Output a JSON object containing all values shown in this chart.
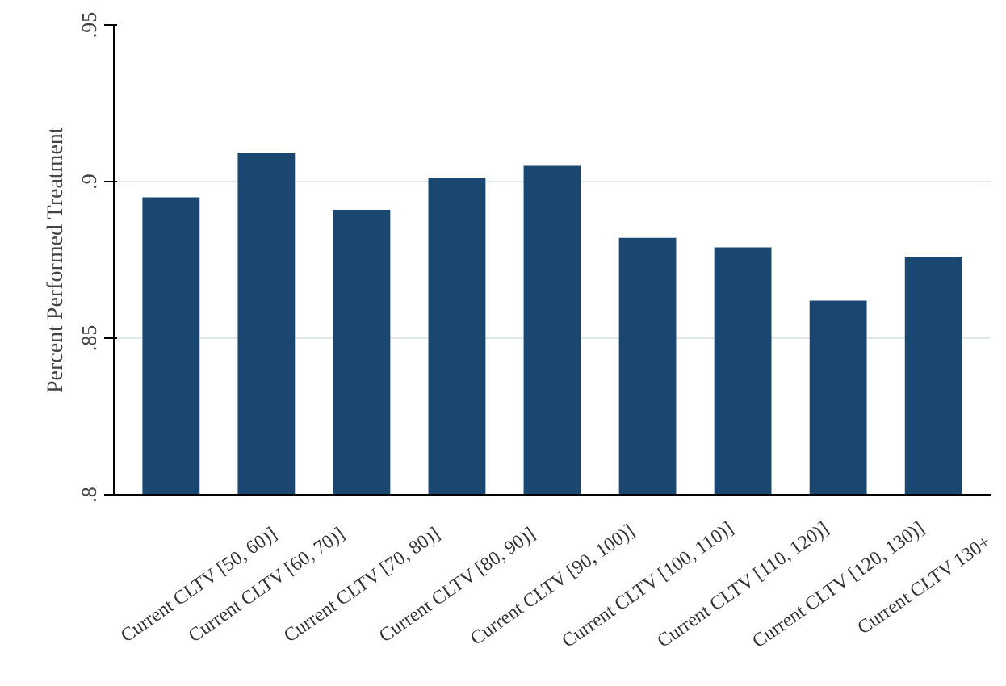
{
  "chart_data": {
    "type": "bar",
    "ylabel": "Percent Performed Treatment",
    "categories": [
      "Current CLTV [50, 60)]",
      "Current CLTV [60, 70)]",
      "Current CLTV [70, 80)]",
      "Current CLTV [80, 90)]",
      "Current CLTV [90, 100)]",
      "Current CLTV [100, 110)]",
      "Current CLTV [110, 120)]",
      "Current CLTV [120, 130)]",
      "Current CLTV 130+"
    ],
    "values": [
      0.895,
      0.909,
      0.891,
      0.901,
      0.905,
      0.882,
      0.879,
      0.862,
      0.876
    ],
    "color": "#1a476f",
    "ylim": [
      0.8,
      0.95
    ],
    "yticks": [
      {
        "value": 0.8,
        "label": ".8"
      },
      {
        "value": 0.85,
        "label": ".85"
      },
      {
        "value": 0.9,
        "label": ".9"
      },
      {
        "value": 0.95,
        "label": ".95"
      }
    ],
    "grid": "y"
  }
}
